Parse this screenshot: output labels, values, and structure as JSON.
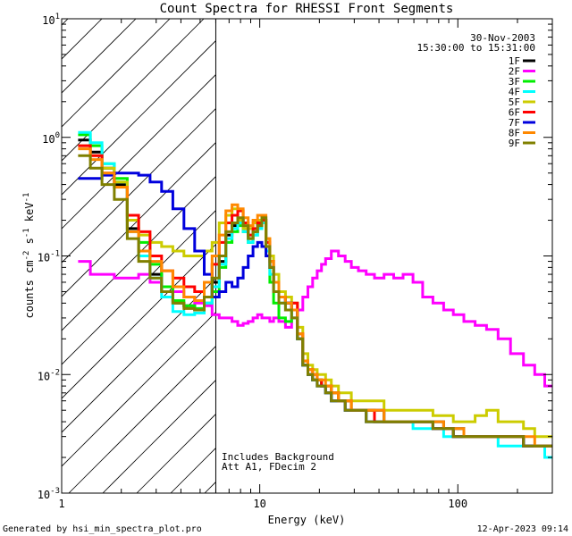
{
  "chart_data": {
    "type": "line",
    "style": "step",
    "title": "Count Spectra for RHESSI Front Segments",
    "xlabel": "Energy (keV)",
    "ylabel": {
      "base": "counts cm",
      "exp1": "-2",
      "mid": " s",
      "exp2": "-1",
      "unit": " keV",
      "exp3": "-1"
    },
    "xscale": "log",
    "yscale": "log",
    "xlim": [
      1,
      300
    ],
    "ylim": [
      0.001,
      10
    ],
    "x_ticks": [
      {
        "value": 1,
        "label": "1"
      },
      {
        "value": 10,
        "label": "10"
      },
      {
        "value": 100,
        "label": "100"
      }
    ],
    "y_ticks": [
      {
        "value": 0.001,
        "base": "10",
        "exp": "-3"
      },
      {
        "value": 0.01,
        "base": "10",
        "exp": "-2"
      },
      {
        "value": 0.1,
        "base": "10",
        "exp": "-1"
      },
      {
        "value": 1,
        "base": "10",
        "exp": "0"
      },
      {
        "value": 10,
        "base": "10",
        "exp": "1"
      }
    ],
    "attenuator_region": {
      "from": 1,
      "to": 6,
      "fill": "hatched"
    },
    "date": "30-Nov-2003",
    "time_range": "15:30:00 to 15:31:00",
    "annotations": [
      "Includes Background",
      "Att A1, FDecim 2"
    ],
    "footer_left": "Generated by hsi_min_spectra_plot.pro",
    "footer_right": "12-Apr-2023 09:14",
    "series": [
      {
        "name": "1F",
        "color": "#000000",
        "x": [
          1.3,
          1.5,
          1.7,
          2.0,
          2.3,
          2.6,
          3.0,
          3.4,
          3.9,
          4.4,
          5.0,
          5.5,
          6.0,
          6.5,
          7.0,
          7.5,
          8.0,
          8.5,
          9.0,
          9.5,
          10.0,
          10.5,
          11.0,
          11.5,
          12.0,
          13.0,
          14.0,
          15.0,
          16.0,
          17.0,
          18.0,
          19.0,
          20.0,
          21.0,
          22.0,
          24.0,
          26.0,
          28.0,
          30.0,
          33.0,
          36.0,
          40.0,
          45.0,
          50.0,
          56.0,
          63.0,
          70.0,
          80.0,
          90.0,
          100.0,
          115.0,
          130.0,
          150.0,
          170.0,
          200.0,
          230.0,
          260.0,
          290.0
        ],
        "y": [
          0.95,
          0.75,
          0.55,
          0.4,
          0.17,
          0.11,
          0.07,
          0.05,
          0.04,
          0.038,
          0.035,
          0.045,
          0.06,
          0.09,
          0.15,
          0.18,
          0.2,
          0.17,
          0.14,
          0.16,
          0.18,
          0.2,
          0.12,
          0.08,
          0.06,
          0.045,
          0.04,
          0.035,
          0.02,
          0.012,
          0.01,
          0.009,
          0.009,
          0.008,
          0.007,
          0.006,
          0.006,
          0.005,
          0.005,
          0.005,
          0.005,
          0.005,
          0.004,
          0.004,
          0.004,
          0.004,
          0.004,
          0.004,
          0.0035,
          0.0035,
          0.003,
          0.003,
          0.003,
          0.003,
          0.003,
          0.0025,
          0.0025,
          0.0025
        ]
      },
      {
        "name": "2F",
        "color": "#ff00ff",
        "x": [
          1.3,
          1.5,
          1.7,
          2.0,
          2.3,
          2.6,
          3.0,
          3.4,
          3.9,
          4.4,
          5.0,
          5.5,
          6.0,
          6.5,
          7.0,
          7.5,
          8.0,
          8.5,
          9.0,
          9.5,
          10.0,
          10.5,
          11.0,
          11.5,
          12.0,
          13.0,
          14.0,
          15.0,
          16.0,
          17.0,
          18.0,
          19.0,
          20.0,
          21.0,
          22.0,
          24.0,
          26.0,
          28.0,
          30.0,
          33.0,
          36.0,
          40.0,
          45.0,
          50.0,
          56.0,
          63.0,
          70.0,
          80.0,
          90.0,
          100.0,
          115.0,
          130.0,
          150.0,
          170.0,
          200.0,
          230.0,
          260.0,
          290.0
        ],
        "y": [
          0.09,
          0.07,
          0.07,
          0.065,
          0.065,
          0.07,
          0.06,
          0.055,
          0.05,
          0.045,
          0.04,
          0.038,
          0.032,
          0.03,
          0.03,
          0.028,
          0.026,
          0.027,
          0.028,
          0.03,
          0.032,
          0.03,
          0.03,
          0.028,
          0.03,
          0.028,
          0.025,
          0.03,
          0.035,
          0.045,
          0.055,
          0.065,
          0.075,
          0.085,
          0.095,
          0.11,
          0.1,
          0.09,
          0.08,
          0.075,
          0.07,
          0.065,
          0.07,
          0.065,
          0.07,
          0.06,
          0.045,
          0.04,
          0.035,
          0.032,
          0.028,
          0.026,
          0.024,
          0.02,
          0.015,
          0.012,
          0.01,
          0.008
        ]
      },
      {
        "name": "3F",
        "color": "#00ee00",
        "x": [
          1.3,
          1.5,
          1.7,
          2.0,
          2.3,
          2.6,
          3.0,
          3.4,
          3.9,
          4.4,
          5.0,
          5.5,
          6.0,
          6.5,
          7.0,
          7.5,
          8.0,
          8.5,
          9.0,
          9.5,
          10.0,
          10.5,
          11.0,
          11.5,
          12.0,
          13.0,
          14.0,
          15.0,
          16.0,
          17.0,
          18.0,
          19.0,
          20.0,
          21.0,
          22.0,
          24.0,
          26.0,
          28.0,
          30.0,
          33.0,
          36.0,
          40.0,
          45.0,
          50.0,
          56.0,
          63.0,
          70.0,
          80.0,
          90.0,
          100.0,
          115.0,
          130.0,
          150.0,
          170.0,
          200.0,
          230.0,
          260.0,
          290.0
        ],
        "y": [
          1.05,
          0.85,
          0.6,
          0.45,
          0.2,
          0.13,
          0.085,
          0.055,
          0.042,
          0.038,
          0.036,
          0.04,
          0.05,
          0.08,
          0.13,
          0.16,
          0.18,
          0.16,
          0.13,
          0.15,
          0.17,
          0.19,
          0.1,
          0.06,
          0.04,
          0.03,
          0.028,
          0.035,
          0.02,
          0.012,
          0.01,
          0.009,
          0.009,
          0.008,
          0.008,
          0.007,
          0.006,
          0.006,
          0.005,
          0.005,
          0.005,
          0.004,
          0.004,
          0.004,
          0.004,
          0.004,
          0.004,
          0.0035,
          0.0035,
          0.003,
          0.003,
          0.003,
          0.003,
          0.003,
          0.003,
          0.0025,
          0.0025,
          0.0025
        ]
      },
      {
        "name": "4F",
        "color": "#00ffff",
        "x": [
          1.3,
          1.5,
          1.7,
          2.0,
          2.3,
          2.6,
          3.0,
          3.4,
          3.9,
          4.4,
          5.0,
          5.5,
          6.0,
          6.5,
          7.0,
          7.5,
          8.0,
          8.5,
          9.0,
          9.5,
          10.0,
          10.5,
          11.0,
          11.5,
          12.0,
          13.0,
          14.0,
          15.0,
          16.0,
          17.0,
          18.0,
          19.0,
          20.0,
          21.0,
          22.0,
          24.0,
          26.0,
          28.0,
          30.0,
          33.0,
          36.0,
          40.0,
          45.0,
          50.0,
          56.0,
          63.0,
          70.0,
          80.0,
          90.0,
          100.0,
          115.0,
          130.0,
          150.0,
          170.0,
          200.0,
          230.0,
          260.0,
          290.0
        ],
        "y": [
          1.1,
          0.9,
          0.6,
          0.42,
          0.16,
          0.1,
          0.065,
          0.045,
          0.034,
          0.032,
          0.033,
          0.04,
          0.055,
          0.085,
          0.14,
          0.17,
          0.19,
          0.16,
          0.13,
          0.15,
          0.17,
          0.19,
          0.11,
          0.07,
          0.05,
          0.04,
          0.035,
          0.03,
          0.02,
          0.012,
          0.01,
          0.009,
          0.008,
          0.008,
          0.007,
          0.006,
          0.006,
          0.005,
          0.005,
          0.005,
          0.004,
          0.004,
          0.004,
          0.004,
          0.004,
          0.0035,
          0.0035,
          0.0035,
          0.003,
          0.003,
          0.003,
          0.003,
          0.003,
          0.0025,
          0.0025,
          0.0025,
          0.0025,
          0.002
        ]
      },
      {
        "name": "5F",
        "color": "#cccc00",
        "x": [
          1.3,
          1.5,
          1.7,
          2.0,
          2.3,
          2.6,
          3.0,
          3.4,
          3.9,
          4.4,
          5.0,
          5.5,
          6.0,
          6.5,
          7.0,
          7.5,
          8.0,
          8.5,
          9.0,
          9.5,
          10.0,
          10.5,
          11.0,
          11.5,
          12.0,
          13.0,
          14.0,
          15.0,
          16.0,
          17.0,
          18.0,
          19.0,
          20.0,
          21.0,
          22.0,
          24.0,
          26.0,
          28.0,
          30.0,
          33.0,
          36.0,
          40.0,
          45.0,
          50.0,
          56.0,
          63.0,
          70.0,
          80.0,
          90.0,
          100.0,
          115.0,
          130.0,
          150.0,
          170.0,
          200.0,
          230.0,
          260.0,
          290.0
        ],
        "y": [
          0.85,
          0.7,
          0.55,
          0.42,
          0.2,
          0.15,
          0.13,
          0.12,
          0.11,
          0.1,
          0.1,
          0.11,
          0.13,
          0.19,
          0.22,
          0.25,
          0.2,
          0.17,
          0.17,
          0.19,
          0.2,
          0.21,
          0.14,
          0.1,
          0.07,
          0.05,
          0.045,
          0.04,
          0.025,
          0.015,
          0.012,
          0.011,
          0.01,
          0.01,
          0.009,
          0.008,
          0.007,
          0.007,
          0.006,
          0.006,
          0.006,
          0.006,
          0.005,
          0.005,
          0.005,
          0.005,
          0.005,
          0.0045,
          0.0045,
          0.004,
          0.004,
          0.0045,
          0.005,
          0.004,
          0.004,
          0.0035,
          0.003,
          0.003
        ]
      },
      {
        "name": "6F",
        "color": "#ff0000",
        "x": [
          1.3,
          1.5,
          1.7,
          2.0,
          2.3,
          2.6,
          3.0,
          3.4,
          3.9,
          4.4,
          5.0,
          5.5,
          6.0,
          6.5,
          7.0,
          7.5,
          8.0,
          8.5,
          9.0,
          9.5,
          10.0,
          10.5,
          11.0,
          11.5,
          12.0,
          13.0,
          14.0,
          15.0,
          16.0,
          17.0,
          18.0,
          19.0,
          20.0,
          21.0,
          22.0,
          24.0,
          26.0,
          28.0,
          30.0,
          33.0,
          36.0,
          40.0,
          45.0,
          50.0,
          56.0,
          63.0,
          70.0,
          80.0,
          90.0,
          100.0,
          115.0,
          130.0,
          150.0,
          170.0,
          200.0,
          230.0,
          260.0,
          290.0
        ],
        "y": [
          0.85,
          0.7,
          0.5,
          0.38,
          0.22,
          0.16,
          0.1,
          0.075,
          0.065,
          0.055,
          0.05,
          0.06,
          0.085,
          0.13,
          0.19,
          0.22,
          0.24,
          0.19,
          0.15,
          0.17,
          0.19,
          0.2,
          0.13,
          0.09,
          0.06,
          0.045,
          0.04,
          0.04,
          0.022,
          0.013,
          0.011,
          0.01,
          0.009,
          0.008,
          0.008,
          0.007,
          0.006,
          0.006,
          0.005,
          0.005,
          0.005,
          0.004,
          0.004,
          0.004,
          0.004,
          0.004,
          0.004,
          0.0035,
          0.0035,
          0.003,
          0.003,
          0.003,
          0.003,
          0.003,
          0.003,
          0.0025,
          0.0025,
          0.0025
        ]
      },
      {
        "name": "7F",
        "color": "#0000dd",
        "x": [
          1.3,
          1.5,
          1.7,
          2.0,
          2.3,
          2.6,
          3.0,
          3.4,
          3.9,
          4.4,
          5.0,
          5.5,
          6.0,
          6.5,
          7.0,
          7.5,
          8.0,
          8.5,
          9.0,
          9.5,
          10.0,
          10.5,
          11.0,
          11.5,
          12.0,
          13.0,
          14.0,
          15.0,
          16.0,
          17.0,
          18.0,
          19.0,
          20.0,
          21.0,
          22.0,
          24.0,
          26.0,
          28.0,
          30.0,
          33.0,
          36.0,
          40.0,
          45.0,
          50.0,
          56.0,
          63.0,
          70.0,
          80.0,
          90.0,
          100.0,
          115.0,
          130.0,
          150.0,
          170.0,
          200.0,
          230.0,
          260.0,
          290.0
        ],
        "y": [
          0.45,
          0.45,
          0.48,
          0.5,
          0.5,
          0.48,
          0.42,
          0.35,
          0.25,
          0.17,
          0.11,
          0.07,
          0.045,
          0.05,
          0.06,
          0.055,
          0.065,
          0.08,
          0.1,
          0.12,
          0.13,
          0.12,
          0.1,
          0.08,
          0.06,
          0.045,
          0.04,
          0.035,
          0.02,
          0.012,
          0.01,
          0.009,
          0.008,
          0.008,
          0.007,
          0.006,
          0.006,
          0.005,
          0.005,
          0.005,
          0.004,
          0.004,
          0.004,
          0.004,
          0.004,
          0.004,
          0.004,
          0.0035,
          0.0035,
          0.003,
          0.003,
          0.003,
          0.003,
          0.003,
          0.003,
          0.0025,
          0.0025,
          0.0025
        ]
      },
      {
        "name": "8F",
        "color": "#ff8800",
        "x": [
          1.3,
          1.5,
          1.7,
          2.0,
          2.3,
          2.6,
          3.0,
          3.4,
          3.9,
          4.4,
          5.0,
          5.5,
          6.0,
          6.5,
          7.0,
          7.5,
          8.0,
          8.5,
          9.0,
          9.5,
          10.0,
          10.5,
          11.0,
          11.5,
          12.0,
          13.0,
          14.0,
          15.0,
          16.0,
          17.0,
          18.0,
          19.0,
          20.0,
          21.0,
          22.0,
          24.0,
          26.0,
          28.0,
          30.0,
          33.0,
          36.0,
          40.0,
          45.0,
          50.0,
          56.0,
          63.0,
          70.0,
          80.0,
          90.0,
          100.0,
          115.0,
          130.0,
          150.0,
          170.0,
          200.0,
          230.0,
          260.0,
          290.0
        ],
        "y": [
          0.8,
          0.65,
          0.5,
          0.38,
          0.16,
          0.11,
          0.09,
          0.075,
          0.055,
          0.045,
          0.042,
          0.06,
          0.1,
          0.15,
          0.24,
          0.27,
          0.25,
          0.21,
          0.18,
          0.2,
          0.22,
          0.22,
          0.14,
          0.09,
          0.06,
          0.045,
          0.04,
          0.035,
          0.022,
          0.013,
          0.011,
          0.01,
          0.009,
          0.009,
          0.008,
          0.007,
          0.006,
          0.006,
          0.005,
          0.005,
          0.005,
          0.005,
          0.004,
          0.004,
          0.004,
          0.004,
          0.004,
          0.004,
          0.0035,
          0.0035,
          0.003,
          0.003,
          0.003,
          0.003,
          0.003,
          0.003,
          0.0025,
          0.0025
        ]
      },
      {
        "name": "9F",
        "color": "#808000",
        "x": [
          1.3,
          1.5,
          1.7,
          2.0,
          2.3,
          2.6,
          3.0,
          3.4,
          3.9,
          4.4,
          5.0,
          5.5,
          6.0,
          6.5,
          7.0,
          7.5,
          8.0,
          8.5,
          9.0,
          9.5,
          10.0,
          10.5,
          11.0,
          11.5,
          12.0,
          13.0,
          14.0,
          15.0,
          16.0,
          17.0,
          18.0,
          19.0,
          20.0,
          21.0,
          22.0,
          24.0,
          26.0,
          28.0,
          30.0,
          33.0,
          36.0,
          40.0,
          45.0,
          50.0,
          56.0,
          63.0,
          70.0,
          80.0,
          90.0,
          100.0,
          115.0,
          130.0,
          150.0,
          170.0,
          200.0,
          230.0,
          260.0,
          290.0
        ],
        "y": [
          0.7,
          0.55,
          0.4,
          0.3,
          0.14,
          0.09,
          0.065,
          0.05,
          0.04,
          0.036,
          0.035,
          0.045,
          0.065,
          0.1,
          0.16,
          0.19,
          0.21,
          0.18,
          0.14,
          0.16,
          0.18,
          0.21,
          0.12,
          0.08,
          0.05,
          0.04,
          0.035,
          0.03,
          0.02,
          0.012,
          0.01,
          0.009,
          0.008,
          0.008,
          0.007,
          0.006,
          0.006,
          0.005,
          0.005,
          0.005,
          0.004,
          0.004,
          0.004,
          0.004,
          0.004,
          0.004,
          0.004,
          0.0035,
          0.0035,
          0.003,
          0.003,
          0.003,
          0.003,
          0.003,
          0.003,
          0.0025,
          0.0025,
          0.0025
        ]
      }
    ]
  }
}
